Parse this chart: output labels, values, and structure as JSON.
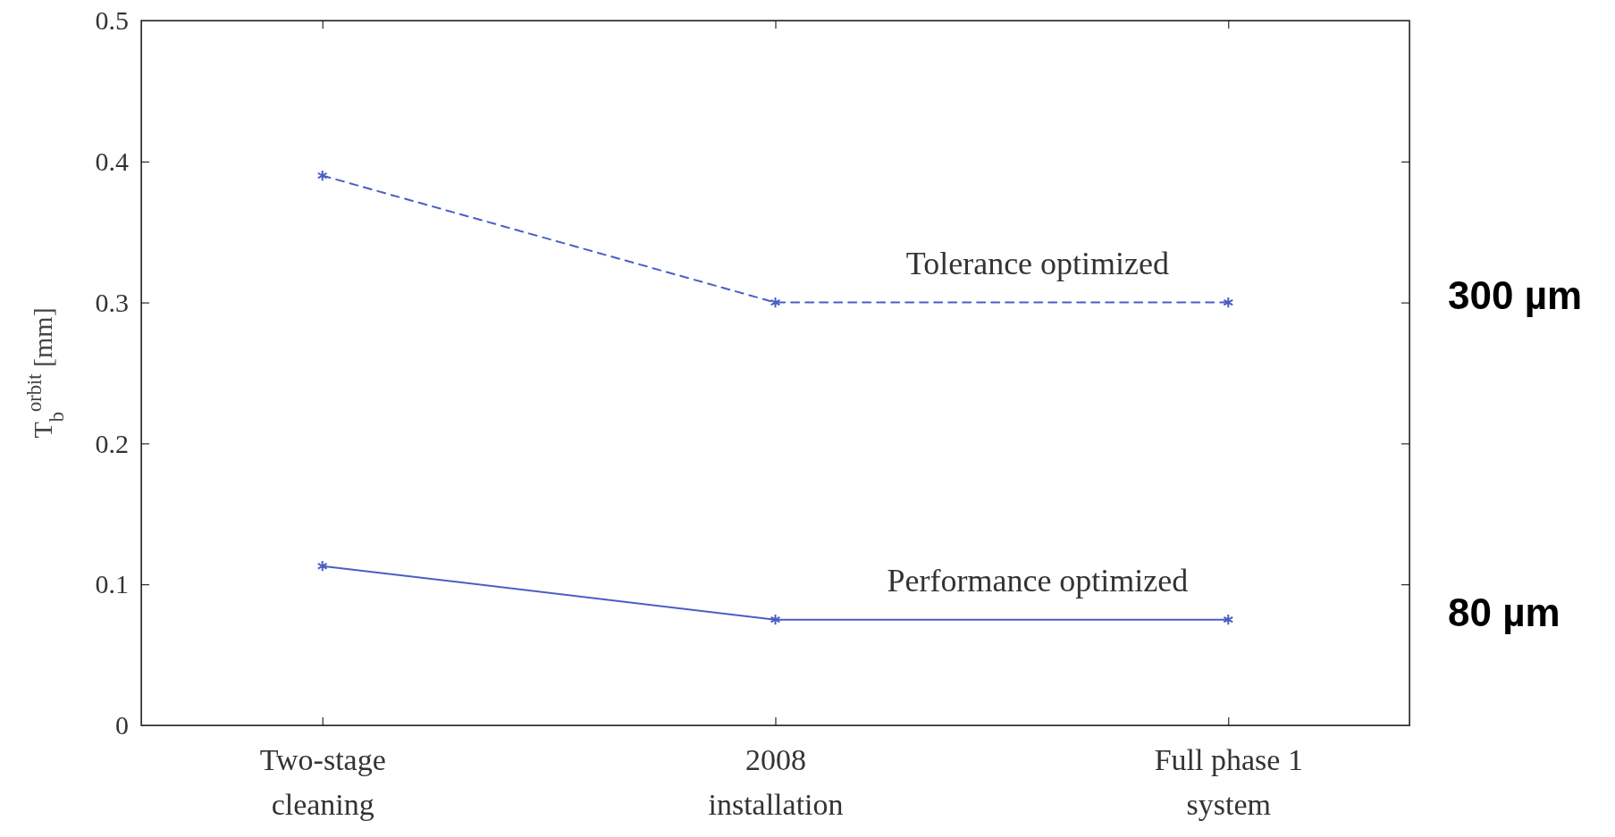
{
  "chart_data": {
    "type": "line",
    "ylabel": "T$_{b}$$^{orbit}$ [mm]",
    "categories": [
      "Two-stage\ncleaning",
      "2008\ninstallation",
      "Full phase 1\nsystem"
    ],
    "series": [
      {
        "name": "Tolerance optimized",
        "color": "#4a5ec4",
        "values": [
          0.39,
          0.3,
          0.3
        ],
        "line_style": "dashed"
      },
      {
        "name": "Performance optimized",
        "color": "#4a5ec4",
        "values": [
          0.113,
          0.075,
          0.075
        ],
        "line_style": "solid"
      }
    ],
    "ylim": [
      0,
      0.5
    ],
    "yticks": [
      0,
      0.1,
      0.2,
      0.3,
      0.4,
      0.5
    ],
    "marker": "cross",
    "grid": false,
    "legend": false,
    "annotations": [
      "300 µm",
      "80 µm"
    ]
  }
}
